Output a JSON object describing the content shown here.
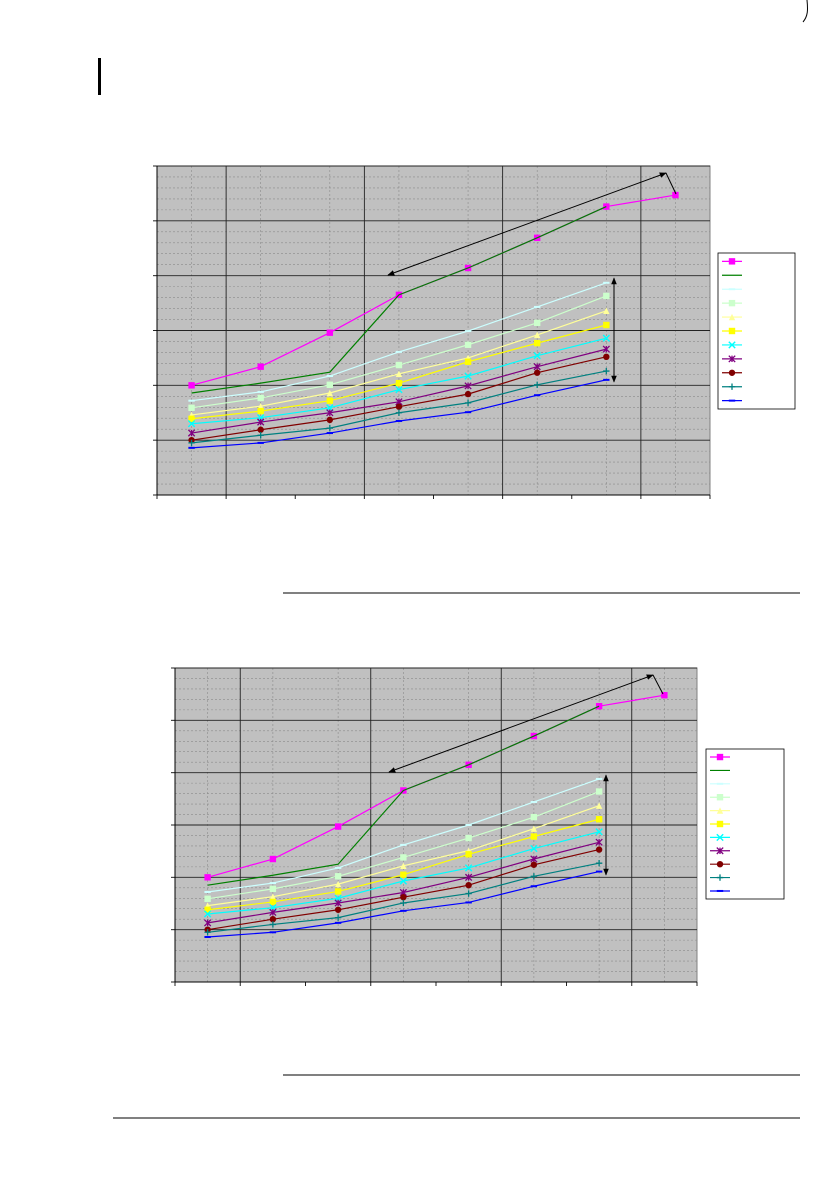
{
  "chart_data": [
    {
      "type": "line",
      "xlim": [
        0,
        8
      ],
      "xticks": [
        0,
        1,
        2,
        3,
        4,
        5,
        6,
        7,
        8
      ],
      "ylim": [
        0,
        6
      ],
      "yticks": [
        0,
        1,
        2,
        3,
        4,
        5,
        6
      ],
      "grid": true,
      "legend": "right",
      "x": [
        0.5,
        1.5,
        2.5,
        3.5,
        4.5,
        5.5,
        6.5,
        7.5
      ],
      "series": [
        {
          "color": "#ff00ff",
          "marker": "square",
          "values": [
            2.0,
            2.34,
            2.96,
            3.65,
            4.14,
            4.69,
            5.26,
            5.47
          ]
        },
        {
          "color": "#008000",
          "marker": "none",
          "values": [
            1.86,
            2.04,
            2.24,
            3.65,
            4.14,
            4.69,
            5.26,
            null
          ]
        },
        {
          "color": "#ccffff",
          "marker": "dash",
          "values": [
            1.72,
            1.88,
            2.17,
            2.61,
            2.99,
            3.43,
            3.87,
            null
          ]
        },
        {
          "color": "#ccffcc",
          "marker": "square",
          "values": [
            1.59,
            1.77,
            2.01,
            2.37,
            2.74,
            3.14,
            3.63,
            null
          ]
        },
        {
          "color": "#ffff99",
          "marker": "triangle",
          "values": [
            1.46,
            1.62,
            1.86,
            2.21,
            2.5,
            2.92,
            3.36,
            null
          ]
        },
        {
          "color": "#ffff00",
          "marker": "square",
          "values": [
            1.39,
            1.53,
            1.72,
            2.04,
            2.43,
            2.77,
            3.1,
            null
          ]
        },
        {
          "color": "#00ffff",
          "marker": "cross",
          "values": [
            1.3,
            1.41,
            1.59,
            1.92,
            2.17,
            2.54,
            2.86,
            null
          ]
        },
        {
          "color": "#800080",
          "marker": "star",
          "values": [
            1.13,
            1.33,
            1.5,
            1.7,
            1.99,
            2.34,
            2.66,
            null
          ]
        },
        {
          "color": "#800000",
          "marker": "circle",
          "values": [
            1.0,
            1.19,
            1.37,
            1.61,
            1.84,
            2.23,
            2.52,
            null
          ]
        },
        {
          "color": "#008080",
          "marker": "plus",
          "values": [
            0.95,
            1.09,
            1.22,
            1.5,
            1.68,
            2.01,
            2.26,
            null
          ]
        },
        {
          "color": "#0000ff",
          "marker": "dash",
          "values": [
            0.86,
            0.95,
            1.13,
            1.35,
            1.51,
            1.82,
            2.1,
            null
          ]
        }
      ]
    },
    {
      "type": "line",
      "xlim": [
        0,
        8
      ],
      "xticks": [
        0,
        1,
        2,
        3,
        4,
        5,
        6,
        7,
        8
      ],
      "ylim": [
        0,
        6
      ],
      "yticks": [
        0,
        1,
        2,
        3,
        4,
        5,
        6
      ],
      "grid": true,
      "legend": "right",
      "x": [
        0.5,
        1.5,
        2.5,
        3.5,
        4.5,
        5.5,
        6.5,
        7.5
      ],
      "series": [
        {
          "color": "#ff00ff",
          "marker": "square",
          "values": [
            2.0,
            2.35,
            2.97,
            3.66,
            4.15,
            4.7,
            5.27,
            5.48
          ]
        },
        {
          "color": "#008000",
          "marker": "none",
          "values": [
            1.85,
            2.04,
            2.25,
            3.66,
            4.15,
            4.7,
            5.27,
            null
          ]
        },
        {
          "color": "#ccffff",
          "marker": "dash",
          "values": [
            1.72,
            1.89,
            2.18,
            2.62,
            3.0,
            3.44,
            3.88,
            null
          ]
        },
        {
          "color": "#ccffcc",
          "marker": "square",
          "values": [
            1.59,
            1.78,
            2.02,
            2.38,
            2.75,
            3.15,
            3.64,
            null
          ]
        },
        {
          "color": "#ffff99",
          "marker": "triangle",
          "values": [
            1.46,
            1.63,
            1.87,
            2.22,
            2.51,
            2.93,
            3.37,
            null
          ]
        },
        {
          "color": "#ffff00",
          "marker": "square",
          "values": [
            1.38,
            1.53,
            1.73,
            2.05,
            2.44,
            2.78,
            3.11,
            null
          ]
        },
        {
          "color": "#00ffff",
          "marker": "cross",
          "values": [
            1.3,
            1.42,
            1.6,
            1.93,
            2.18,
            2.55,
            2.87,
            null
          ]
        },
        {
          "color": "#800080",
          "marker": "star",
          "values": [
            1.13,
            1.33,
            1.51,
            1.71,
            2.0,
            2.35,
            2.67,
            null
          ]
        },
        {
          "color": "#800000",
          "marker": "circle",
          "values": [
            1.0,
            1.2,
            1.38,
            1.62,
            1.85,
            2.24,
            2.53,
            null
          ]
        },
        {
          "color": "#008080",
          "marker": "plus",
          "values": [
            0.95,
            1.1,
            1.23,
            1.51,
            1.69,
            2.02,
            2.27,
            null
          ]
        },
        {
          "color": "#0000ff",
          "marker": "dash",
          "values": [
            0.86,
            0.95,
            1.13,
            1.36,
            1.52,
            1.83,
            2.11,
            null
          ]
        }
      ]
    }
  ]
}
